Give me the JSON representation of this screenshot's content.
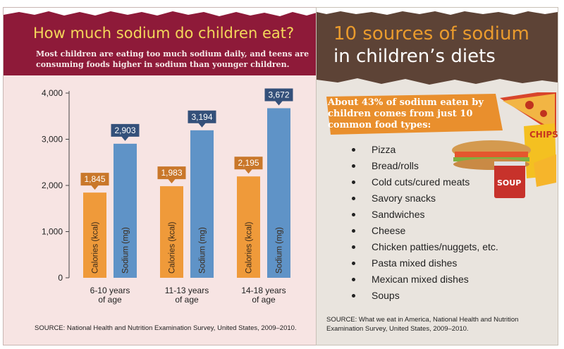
{
  "left_panel": {
    "title": "How much sodium do children eat?",
    "subtitle": "Most children are eating too much sodium daily, and teens are consuming foods higher in sodium than younger children.",
    "source": "SOURCE: National Health and Nutrition Examination Survey, United States, 2009–2010."
  },
  "right_panel": {
    "title_line1": "10 sources of sodium",
    "title_line2": "in children’s diets",
    "callout": "About 43% of sodium eaten by children comes from just 10 common food types:",
    "items": [
      "Pizza",
      "Bread/rolls",
      "Cold cuts/cured meats",
      "Savory snacks",
      "Sandwiches",
      "Cheese",
      "Chicken patties/nuggets, etc.",
      "Pasta mixed dishes",
      "Mexican mixed dishes",
      "Soups"
    ],
    "source": "SOURCE: What we eat in America, National Health and Nutrition Examination Survey, United States, 2009–2010.",
    "food_labels": {
      "chips": "CHIPS",
      "soup": "SOUP"
    }
  },
  "chart_data": {
    "type": "bar",
    "categories": [
      "6-10 years of age",
      "11-13 years of age",
      "14-18 years of age"
    ],
    "category_lines": [
      [
        "6-10 years",
        "of age"
      ],
      [
        "11-13 years",
        "of age"
      ],
      [
        "14-18 years",
        "of age"
      ]
    ],
    "series": [
      {
        "name": "Calories (kcal)",
        "values": [
          1845,
          1983,
          2195
        ],
        "labels": [
          "1,845",
          "1,983",
          "2,195"
        ],
        "color": "#ef9a3a",
        "label_bg": "#c9772a"
      },
      {
        "name": "Sodium (mg)",
        "values": [
          2903,
          3194,
          3672
        ],
        "labels": [
          "2,903",
          "3,194",
          "3,672"
        ],
        "color": "#5f93c7",
        "label_bg": "#34507a"
      }
    ],
    "yticks": [
      0,
      1000,
      2000,
      3000,
      4000
    ],
    "ytick_labels": [
      "0",
      "1,000",
      "2,000",
      "3,000",
      "4,000"
    ],
    "ylim": [
      0,
      4000
    ],
    "title": "",
    "xlabel": "",
    "ylabel": "",
    "grid": false
  },
  "colors": {
    "left_header": "#8e1a39",
    "left_title": "#f4d75a",
    "left_bg": "#f7e4e3",
    "right_header": "#5d4336",
    "right_title_accent": "#ea9b2d",
    "callout": "#e98f2d"
  }
}
